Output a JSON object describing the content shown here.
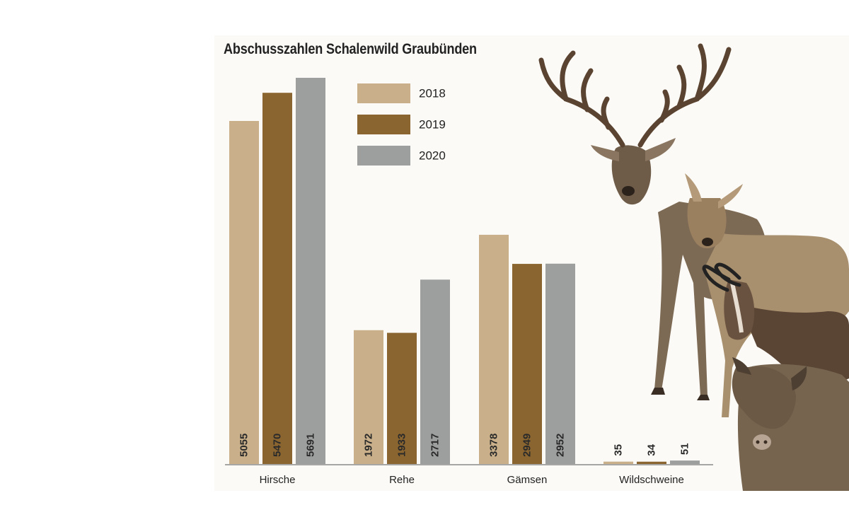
{
  "chart_data": {
    "type": "bar",
    "title": "Abschusszahlen Schalenwild Graubünden",
    "categories": [
      "Hirsche",
      "Rehe",
      "Gämsen",
      "Wildschweine"
    ],
    "series": [
      {
        "name": "2018",
        "color": "#c9b08a",
        "values": [
          5055,
          1972,
          3378,
          35
        ]
      },
      {
        "name": "2019",
        "color": "#8b652f",
        "values": [
          5470,
          1933,
          2949,
          34
        ]
      },
      {
        "name": "2020",
        "color": "#9d9e9e",
        "values": [
          5691,
          2717,
          2952,
          51
        ]
      }
    ],
    "xlabel": "",
    "ylabel": "",
    "ylim": [
      0,
      6000
    ],
    "grid": false,
    "legend_position": "top-center",
    "axis_color": "#8a8a8a",
    "label_color": "#2a2a2a"
  },
  "illustration": {
    "description_icons": [
      "red-deer-icon",
      "roe-deer-icon",
      "chamois-icon",
      "wild-boar-icon"
    ]
  }
}
